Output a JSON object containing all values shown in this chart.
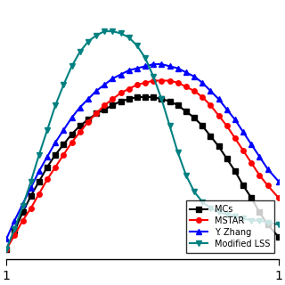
{
  "title": "",
  "xlabel": "",
  "ylabel": "",
  "xlim": [
    0.0,
    1.0
  ],
  "background_color": "#ffffff",
  "series": {
    "MCs": {
      "color": "#000000",
      "marker": "s",
      "markersize": 4,
      "linewidth": 1.5,
      "x": [
        0.0,
        0.03,
        0.06,
        0.09,
        0.12,
        0.15,
        0.18,
        0.21,
        0.24,
        0.27,
        0.3,
        0.33,
        0.36,
        0.39,
        0.42,
        0.45,
        0.48,
        0.51,
        0.54,
        0.57,
        0.6,
        0.63,
        0.66,
        0.69,
        0.72,
        0.75,
        0.78,
        0.81,
        0.84,
        0.87,
        0.9,
        0.93,
        0.96,
        1.0
      ],
      "y": [
        0.0,
        0.09,
        0.18,
        0.26,
        0.33,
        0.4,
        0.46,
        0.51,
        0.56,
        0.6,
        0.63,
        0.66,
        0.68,
        0.7,
        0.72,
        0.73,
        0.74,
        0.74,
        0.74,
        0.73,
        0.72,
        0.7,
        0.67,
        0.64,
        0.6,
        0.55,
        0.5,
        0.44,
        0.38,
        0.31,
        0.25,
        0.18,
        0.12,
        0.06
      ]
    },
    "MSTAR": {
      "color": "#ff0000",
      "marker": "o",
      "markersize": 4,
      "linewidth": 1.5,
      "x": [
        0.0,
        0.03,
        0.06,
        0.09,
        0.12,
        0.15,
        0.18,
        0.21,
        0.24,
        0.27,
        0.3,
        0.33,
        0.36,
        0.39,
        0.42,
        0.45,
        0.48,
        0.51,
        0.54,
        0.57,
        0.6,
        0.63,
        0.66,
        0.69,
        0.72,
        0.75,
        0.78,
        0.81,
        0.84,
        0.87,
        0.9,
        0.93,
        0.96,
        1.0
      ],
      "y": [
        0.0,
        0.07,
        0.14,
        0.2,
        0.27,
        0.34,
        0.4,
        0.46,
        0.52,
        0.57,
        0.62,
        0.66,
        0.7,
        0.73,
        0.76,
        0.78,
        0.8,
        0.81,
        0.82,
        0.82,
        0.82,
        0.81,
        0.79,
        0.77,
        0.74,
        0.7,
        0.65,
        0.6,
        0.54,
        0.48,
        0.42,
        0.36,
        0.31,
        0.25
      ]
    },
    "Y. Zhang": {
      "color": "#0000ff",
      "marker": "^",
      "markersize": 4,
      "linewidth": 1.5,
      "x": [
        0.0,
        0.03,
        0.06,
        0.09,
        0.12,
        0.15,
        0.18,
        0.21,
        0.24,
        0.27,
        0.3,
        0.33,
        0.36,
        0.39,
        0.42,
        0.45,
        0.48,
        0.51,
        0.54,
        0.57,
        0.6,
        0.63,
        0.66,
        0.69,
        0.72,
        0.75,
        0.78,
        0.81,
        0.84,
        0.87,
        0.9,
        0.93,
        0.96,
        1.0
      ],
      "y": [
        0.05,
        0.14,
        0.22,
        0.3,
        0.38,
        0.45,
        0.52,
        0.58,
        0.64,
        0.69,
        0.73,
        0.77,
        0.8,
        0.83,
        0.85,
        0.87,
        0.88,
        0.89,
        0.9,
        0.9,
        0.89,
        0.88,
        0.86,
        0.84,
        0.81,
        0.77,
        0.73,
        0.68,
        0.63,
        0.57,
        0.51,
        0.45,
        0.39,
        0.33
      ]
    },
    "Modified LSS": {
      "color": "#008080",
      "marker": "v",
      "markersize": 4,
      "linewidth": 1.5,
      "x": [
        0.0,
        0.03,
        0.06,
        0.09,
        0.12,
        0.15,
        0.18,
        0.21,
        0.24,
        0.27,
        0.3,
        0.33,
        0.36,
        0.39,
        0.42,
        0.45,
        0.48,
        0.51,
        0.54,
        0.57,
        0.6,
        0.63,
        0.66,
        0.69,
        0.72,
        0.75,
        0.78,
        0.81,
        0.84,
        0.87,
        0.9,
        0.93,
        0.96,
        1.0
      ],
      "y": [
        0.0,
        0.1,
        0.21,
        0.33,
        0.46,
        0.58,
        0.7,
        0.8,
        0.89,
        0.96,
        1.01,
        1.04,
        1.06,
        1.06,
        1.05,
        1.03,
        0.99,
        0.93,
        0.84,
        0.73,
        0.6,
        0.47,
        0.36,
        0.28,
        0.23,
        0.2,
        0.18,
        0.17,
        0.16,
        0.15,
        0.14,
        0.14,
        0.13,
        0.12
      ]
    }
  }
}
